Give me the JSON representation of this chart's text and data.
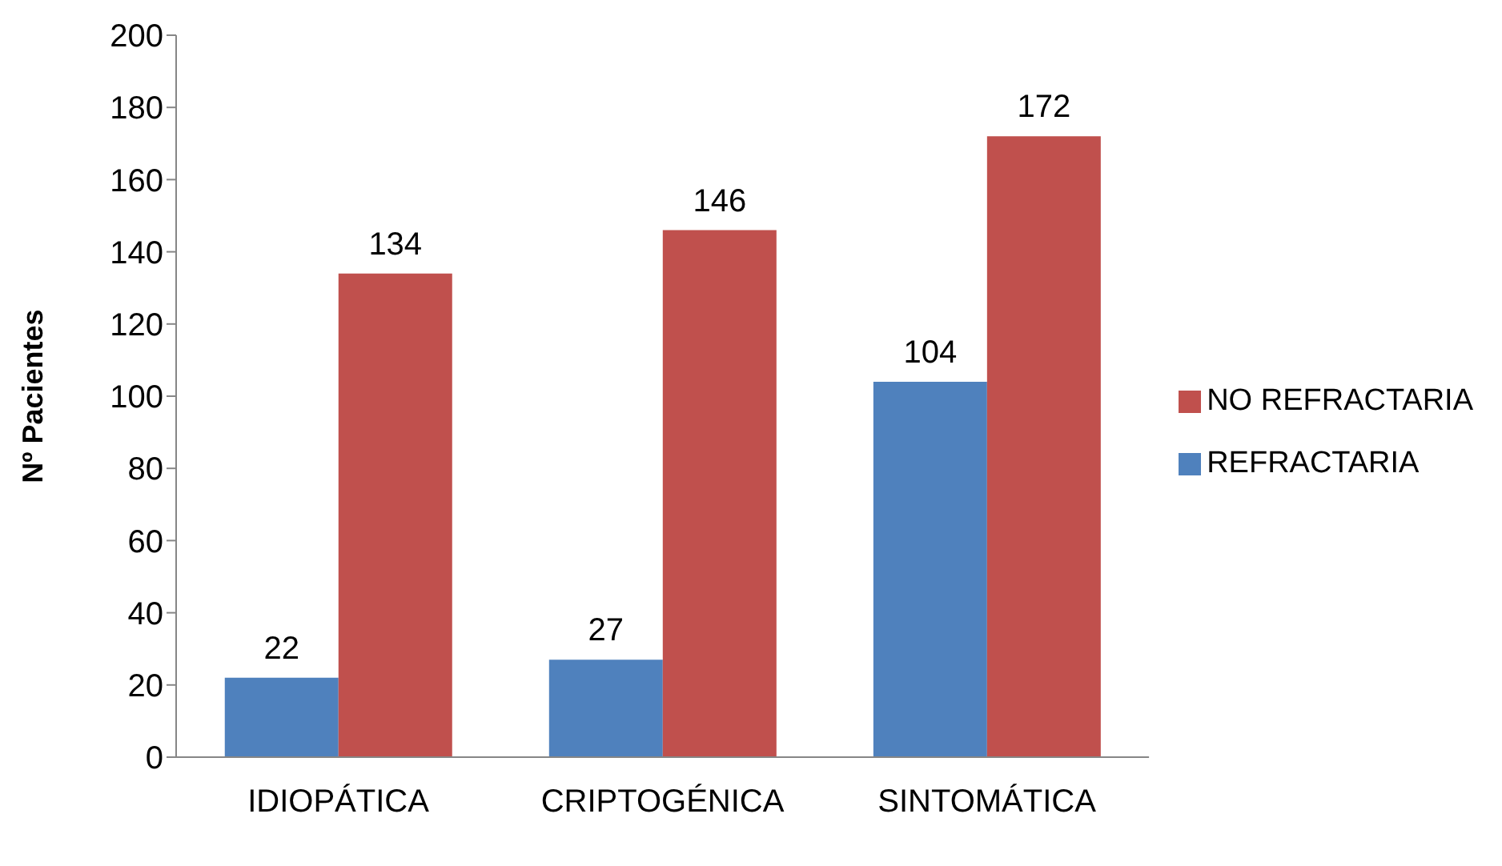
{
  "chart_data": {
    "type": "bar",
    "ylabel": "Nº Pacientes",
    "categories": [
      "IDIOPÁTICA",
      "CRIPTOGÉNICA",
      "SINTOMÁTICA"
    ],
    "series": [
      {
        "name": "REFRACTARIA",
        "color": "#4f81bd",
        "values": [
          22,
          27,
          104
        ]
      },
      {
        "name": "NO REFRACTARIA",
        "color": "#c0504d",
        "values": [
          134,
          146,
          172
        ]
      }
    ],
    "ylim": [
      0,
      200
    ],
    "yticks": [
      0,
      20,
      40,
      60,
      80,
      100,
      120,
      140,
      160,
      180,
      200
    ],
    "data_labels": true,
    "legend": "right"
  }
}
